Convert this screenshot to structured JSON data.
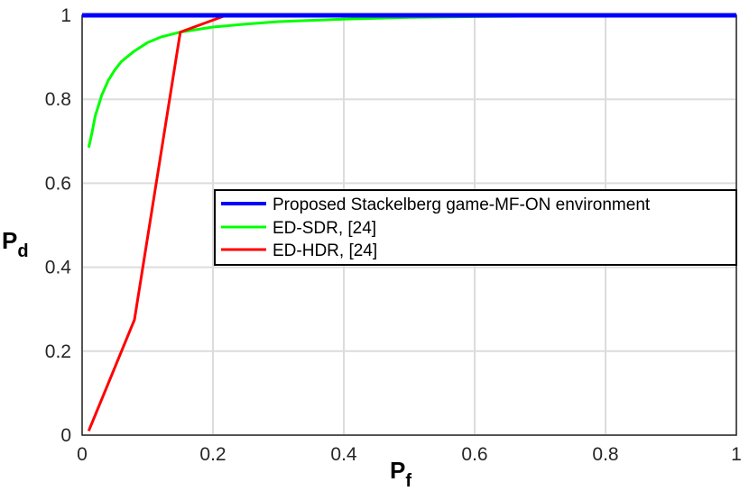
{
  "chart_data": {
    "type": "line",
    "title": "",
    "xlabel": "P",
    "xlabel_sub": "f",
    "ylabel": "P",
    "ylabel_sub": "d",
    "xlim": [
      0,
      1
    ],
    "ylim": [
      0,
      1
    ],
    "grid": true,
    "legend_position": "center-right",
    "x_ticks": [
      0,
      0.2,
      0.4,
      0.6,
      0.8,
      1
    ],
    "y_ticks": [
      0,
      0.2,
      0.4,
      0.6,
      0.8,
      1
    ],
    "x_tick_labels": [
      "0",
      "0.2",
      "0.4",
      "0.6",
      "0.8",
      "1"
    ],
    "y_tick_labels": [
      "0",
      "0.2",
      "0.4",
      "0.6",
      "0.8",
      "1"
    ],
    "series": [
      {
        "name": "Proposed Stackelberg game-MF-ON environment",
        "color": "#0000ff",
        "x": [
          0,
          1
        ],
        "y": [
          1,
          1
        ]
      },
      {
        "name": "ED-SDR, [24]",
        "color": "#00ff00",
        "x": [
          0.01,
          0.015,
          0.02,
          0.03,
          0.04,
          0.05,
          0.06,
          0.08,
          0.1,
          0.12,
          0.15,
          0.2,
          0.25,
          0.3,
          0.4,
          0.5,
          0.6,
          0.7,
          0.8,
          0.9,
          1.0
        ],
        "y": [
          0.685,
          0.72,
          0.76,
          0.81,
          0.845,
          0.87,
          0.89,
          0.915,
          0.935,
          0.948,
          0.96,
          0.972,
          0.979,
          0.985,
          0.991,
          0.995,
          0.997,
          0.998,
          0.999,
          0.999,
          1.0
        ]
      },
      {
        "name": "ED-HDR, [24]",
        "color": "#ff0000",
        "x": [
          0.01,
          0.08,
          0.15,
          0.22,
          1.0
        ],
        "y": [
          0.01,
          0.275,
          0.96,
          1.0,
          1.0
        ]
      }
    ]
  }
}
